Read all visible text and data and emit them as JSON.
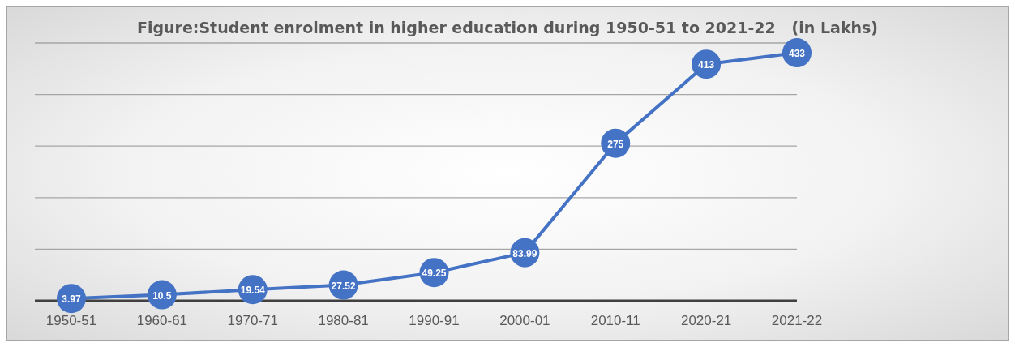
{
  "chart_data": {
    "type": "line",
    "title": "Figure:Student enrolment in higher education during 1950-51 to 2021-22   (in Lakhs)",
    "categories": [
      "1950-51",
      "1960-61",
      "1970-71",
      "1980-81",
      "1990-91",
      "2000-01",
      "2010-11",
      "2020-21",
      "2021-22"
    ],
    "series": [
      {
        "color": "#4472c4",
        "values": [
          3.97,
          10.5,
          19.54,
          27.52,
          49.25,
          83.99,
          275,
          413,
          433
        ]
      }
    ],
    "tick_labels": "x",
    "grid": "y",
    "marker": "circle",
    "line_style": "solid",
    "data_labels": true
  }
}
